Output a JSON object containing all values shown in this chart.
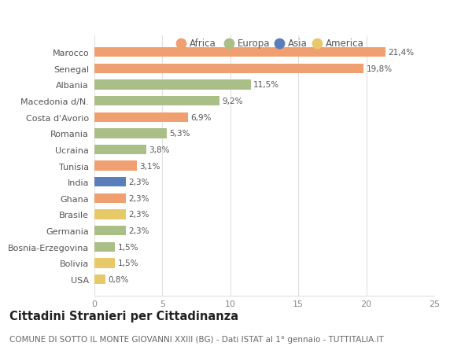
{
  "categories": [
    "USA",
    "Bolivia",
    "Bosnia-Erzegovina",
    "Germania",
    "Brasile",
    "Ghana",
    "India",
    "Tunisia",
    "Ucraina",
    "Romania",
    "Costa d'Avorio",
    "Macedonia d/N.",
    "Albania",
    "Senegal",
    "Marocco"
  ],
  "values": [
    0.8,
    1.5,
    1.5,
    2.3,
    2.3,
    2.3,
    2.3,
    3.1,
    3.8,
    5.3,
    6.9,
    9.2,
    11.5,
    19.8,
    21.4
  ],
  "labels": [
    "0,8%",
    "1,5%",
    "1,5%",
    "2,3%",
    "2,3%",
    "2,3%",
    "2,3%",
    "3,1%",
    "3,8%",
    "5,3%",
    "6,9%",
    "9,2%",
    "11,5%",
    "19,8%",
    "21,4%"
  ],
  "continents": [
    "America",
    "America",
    "Europa",
    "Europa",
    "America",
    "Africa",
    "Asia",
    "Africa",
    "Europa",
    "Europa",
    "Africa",
    "Europa",
    "Europa",
    "Africa",
    "Africa"
  ],
  "continent_colors": {
    "Africa": "#F0A070",
    "Europa": "#AABF88",
    "Asia": "#5A7DBB",
    "America": "#E8C96A"
  },
  "legend_order": [
    "Africa",
    "Europa",
    "Asia",
    "America"
  ],
  "title": "Cittadini Stranieri per Cittadinanza",
  "subtitle": "COMUNE DI SOTTO IL MONTE GIOVANNI XXIII (BG) - Dati ISTAT al 1° gennaio - TUTTITALIA.IT",
  "xlim": [
    0,
    25
  ],
  "xticks": [
    0,
    5,
    10,
    15,
    20,
    25
  ],
  "background_color": "#ffffff",
  "grid_color": "#e0e0e0",
  "bar_height": 0.6,
  "title_fontsize": 10.5,
  "subtitle_fontsize": 7.5,
  "label_fontsize": 7.5,
  "tick_fontsize": 8,
  "legend_fontsize": 8.5
}
